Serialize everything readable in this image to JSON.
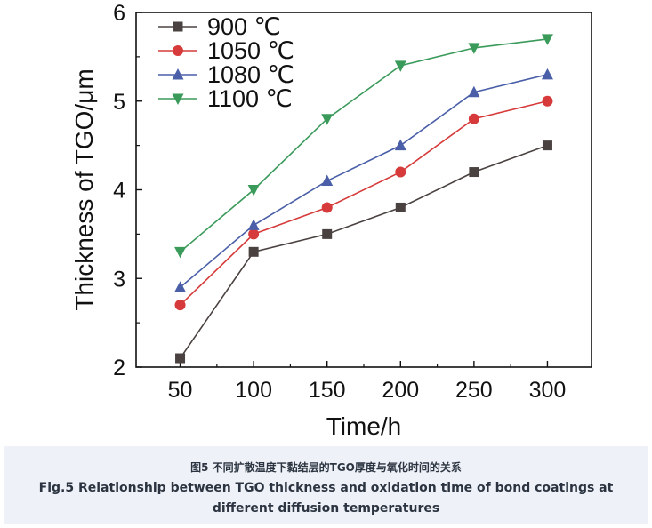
{
  "chart_data": {
    "type": "line",
    "xlabel": "Time/h",
    "ylabel": "Thickness of TGO/μm",
    "x": [
      50,
      100,
      150,
      200,
      250,
      300
    ],
    "xlim": [
      20,
      330
    ],
    "ylim": [
      2,
      6
    ],
    "x_ticks": [
      "50",
      "100",
      "150",
      "200",
      "250",
      "300"
    ],
    "y_ticks": [
      "2",
      "3",
      "4",
      "5",
      "6"
    ],
    "grid": false,
    "legend_position": "top-left",
    "series": [
      {
        "name": "900 ℃",
        "color": "#4a4240",
        "marker": "square",
        "values": [
          2.1,
          3.3,
          3.5,
          3.8,
          4.2,
          4.5
        ]
      },
      {
        "name": "1050 ℃",
        "color": "#d63a3a",
        "marker": "circle",
        "values": [
          2.7,
          3.5,
          3.8,
          4.2,
          4.8,
          5.0
        ]
      },
      {
        "name": "1080 ℃",
        "color": "#4a5fa8",
        "marker": "triangle-up",
        "values": [
          2.9,
          3.6,
          4.1,
          4.5,
          5.1,
          5.3
        ]
      },
      {
        "name": "1100 ℃",
        "color": "#3a9a5a",
        "marker": "triangle-down",
        "values": [
          3.3,
          4.0,
          4.8,
          5.4,
          5.6,
          5.7
        ]
      }
    ]
  },
  "caption": {
    "zh": "图5 不同扩散温度下黏结层的TGO厚度与氧化时间的关系",
    "en": "Fig.5 Relationship between TGO thickness and oxidation time of bond coatings at different diffusion temperatures"
  }
}
